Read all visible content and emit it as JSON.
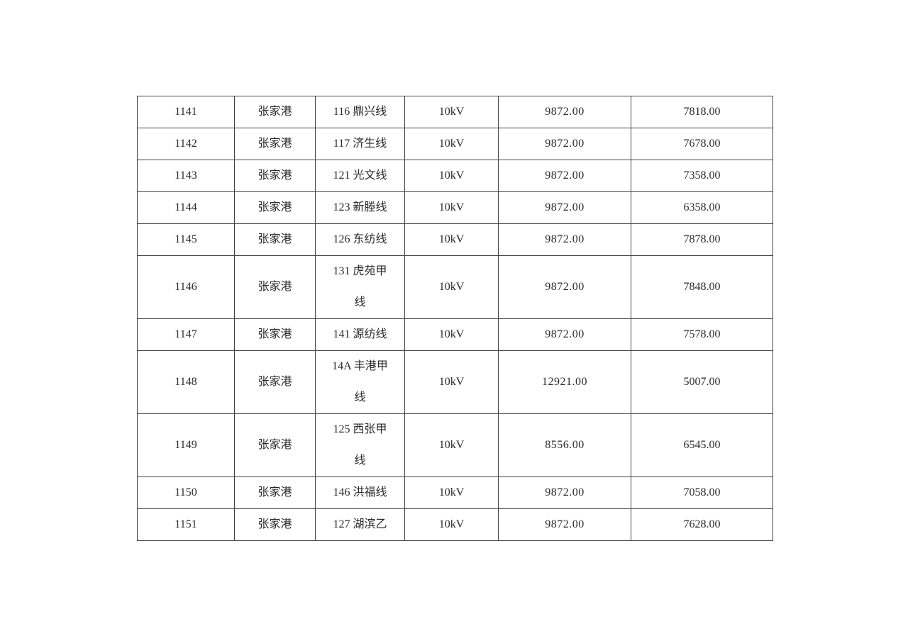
{
  "page": {
    "background_color": "#ffffff",
    "table_border_color": "#424242",
    "text_color": "#2a2a2a"
  },
  "table": {
    "columns": [
      "row_id",
      "region",
      "line_name",
      "voltage",
      "value1",
      "value2"
    ],
    "rows": [
      {
        "id": "1141",
        "region": "张家港",
        "line": "116 鼎兴线",
        "voltage": "10kV",
        "v1": "9872.00",
        "v2": "7818.00"
      },
      {
        "id": "1142",
        "region": "张家港",
        "line": "117 济生线",
        "voltage": "10kV",
        "v1": "9872.00",
        "v2": "7678.00"
      },
      {
        "id": "1143",
        "region": "张家港",
        "line": "121 光文线",
        "voltage": "10kV",
        "v1": "9872.00",
        "v2": "7358.00"
      },
      {
        "id": "1144",
        "region": "张家港",
        "line": "123 新塍线",
        "voltage": "10kV",
        "v1": "9872.00",
        "v2": "6358.00"
      },
      {
        "id": "1145",
        "region": "张家港",
        "line": "126 东纺线",
        "voltage": "10kV",
        "v1": "9872.00",
        "v2": "7878.00"
      },
      {
        "id": "1146",
        "region": "张家港",
        "line": "131 虎苑甲\n线",
        "voltage": "10kV",
        "v1": "9872.00",
        "v2": "7848.00"
      },
      {
        "id": "1147",
        "region": "张家港",
        "line": "141 源纺线",
        "voltage": "10kV",
        "v1": "9872.00",
        "v2": "7578.00"
      },
      {
        "id": "1148",
        "region": "张家港",
        "line": "14A 丰港甲\n线",
        "voltage": "10kV",
        "v1": "12921.00",
        "v2": "5007.00"
      },
      {
        "id": "1149",
        "region": "张家港",
        "line": "125 西张甲\n线",
        "voltage": "10kV",
        "v1": "8556.00",
        "v2": "6545.00"
      },
      {
        "id": "1150",
        "region": "张家港",
        "line": "146 洪福线",
        "voltage": "10kV",
        "v1": "9872.00",
        "v2": "7058.00"
      },
      {
        "id": "1151",
        "region": "张家港",
        "line": "127 湖滨乙",
        "voltage": "10kV",
        "v1": "9872.00",
        "v2": "7628.00"
      }
    ]
  }
}
